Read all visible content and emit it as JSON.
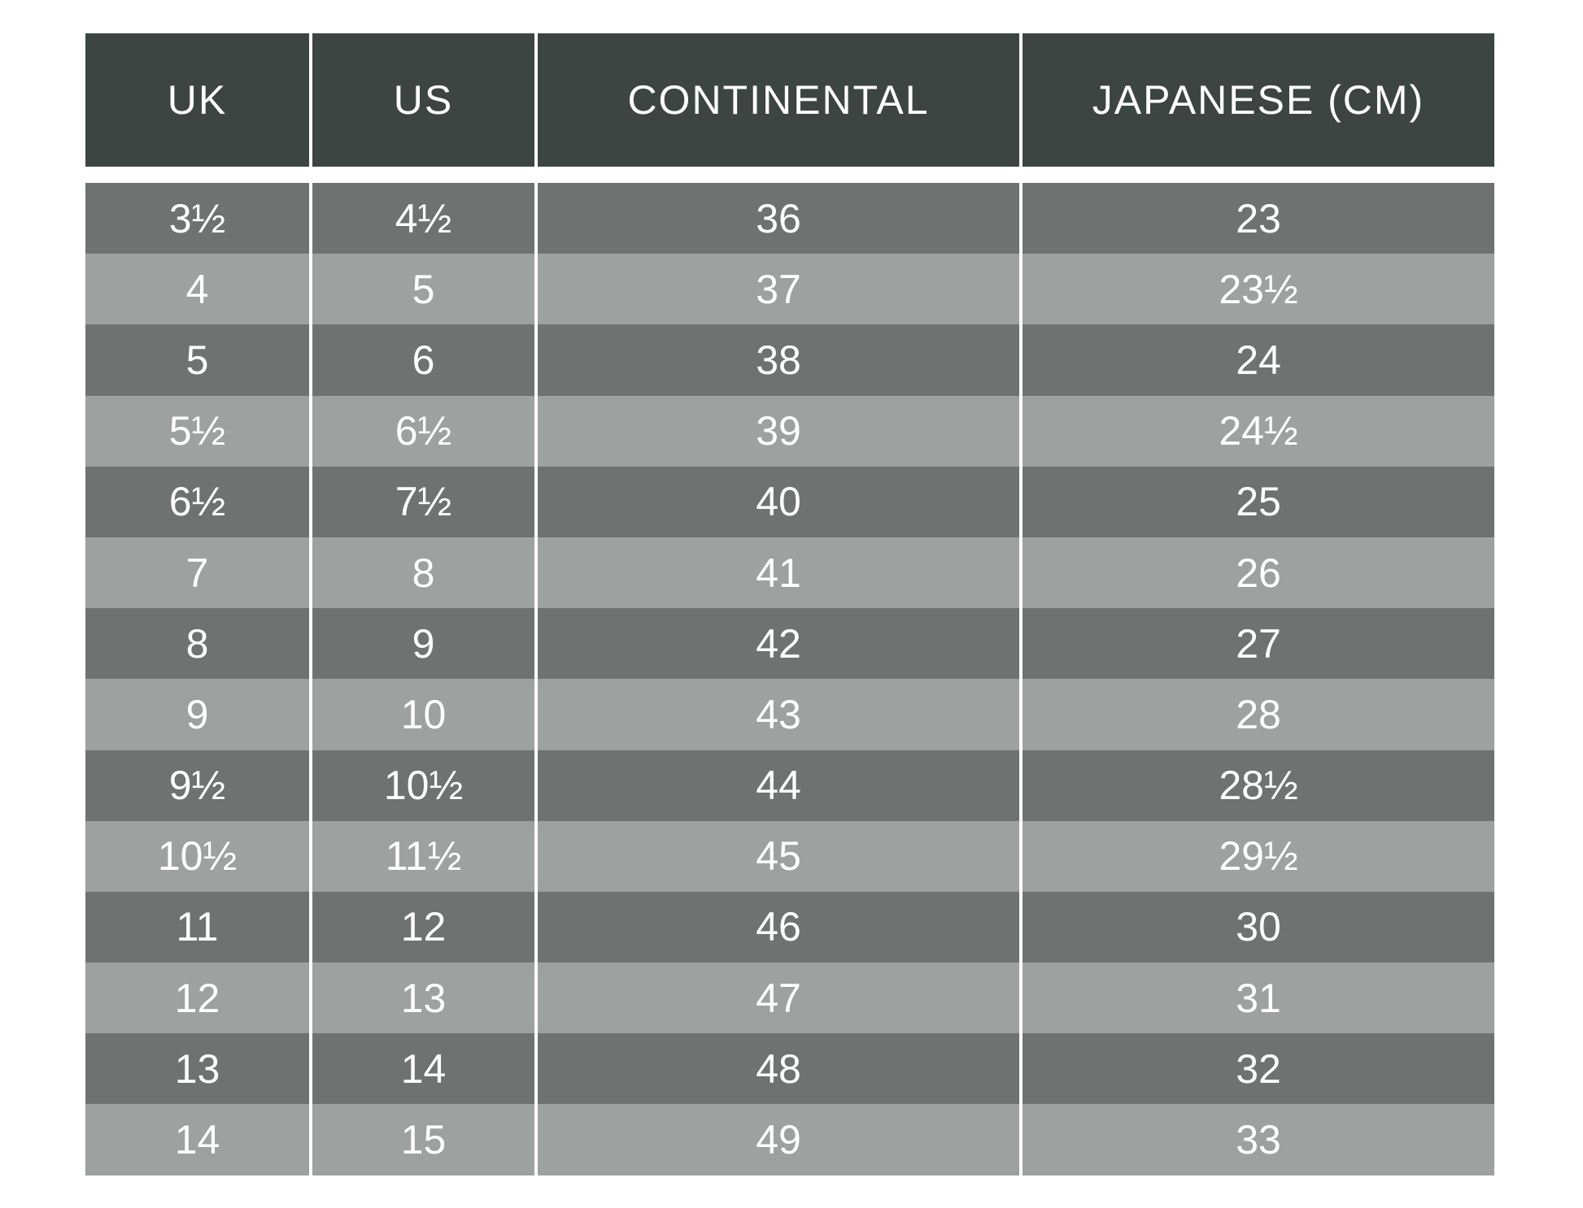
{
  "headers": [
    "UK",
    "US",
    "CONTINENTAL",
    "JAPANESE (CM)"
  ],
  "colors": {
    "header": "#3d4543",
    "row_dark": "#6e7371",
    "row_light": "#9da19f",
    "text": "#ffffff"
  },
  "rows": [
    [
      "3½",
      "4½",
      "36",
      "23"
    ],
    [
      "4",
      "5",
      "37",
      "23½"
    ],
    [
      "5",
      "6",
      "38",
      "24"
    ],
    [
      "5½",
      "6½",
      "39",
      "24½"
    ],
    [
      "6½",
      "7½",
      "40",
      "25"
    ],
    [
      "7",
      "8",
      "41",
      "26"
    ],
    [
      "8",
      "9",
      "42",
      "27"
    ],
    [
      "9",
      "10",
      "43",
      "28"
    ],
    [
      "9½",
      "10½",
      "44",
      "28½"
    ],
    [
      "10½",
      "11½",
      "45",
      "29½"
    ],
    [
      "11",
      "12",
      "46",
      "30"
    ],
    [
      "12",
      "13",
      "47",
      "31"
    ],
    [
      "13",
      "14",
      "48",
      "32"
    ],
    [
      "14",
      "15",
      "49",
      "33"
    ]
  ]
}
